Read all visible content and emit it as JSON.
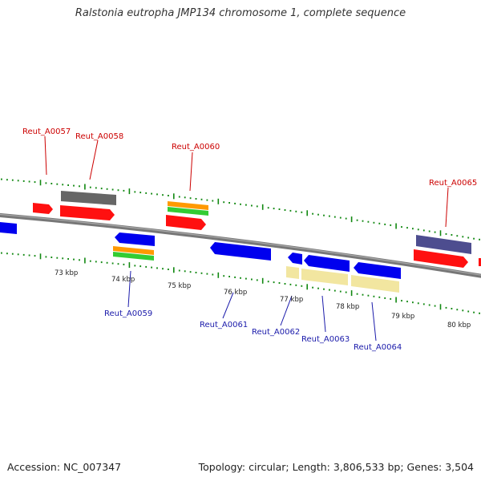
{
  "title": "Ralstonia eutropha JMP134 chromosome 1, complete sequence",
  "accession": "Accession: NC_007347",
  "summary": "Topology: circular; Length: 3,806,533 bp; Genes: 3,504",
  "scale_labels": [
    "73 kbp",
    "74 kbp",
    "75 kbp",
    "76 kbp",
    "77 kbp",
    "78 kbp",
    "79 kbp",
    "80 kbp"
  ],
  "forward_genes": [
    "Reut_A0057",
    "Reut_A0058",
    "Reut_A0060",
    "Reut_A0065"
  ],
  "reverse_genes": [
    "Reut_A0059",
    "Reut_A0061",
    "Reut_A0062",
    "Reut_A0063",
    "Reut_A0064"
  ],
  "colors": {
    "backbone": "#888888",
    "forward_label": "#cc0000",
    "reverse_label": "#1a1aaa",
    "cds": "#ff0000",
    "reverse_cds": "#0000ee",
    "gene": "#666666",
    "gene_alt": "#4d4d8f",
    "rna": "#ff9900",
    "mrna": "#33cc33",
    "misc_feature": "#f2e6a0",
    "tick": "#118811"
  }
}
